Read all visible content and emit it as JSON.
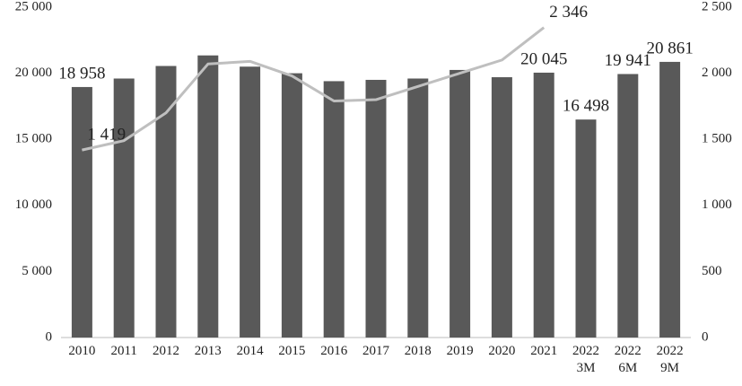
{
  "chart_data": {
    "type": "bar",
    "categories": [
      "2010",
      "2011",
      "2012",
      "2013",
      "2014",
      "2015",
      "2016",
      "2017",
      "2018",
      "2019",
      "2020",
      "2021",
      "2022\n3M",
      "2022\n6M",
      "2022\n9M"
    ],
    "series": [
      {
        "type": "bar",
        "color": "#595959",
        "values": [
          18958,
          19600,
          20550,
          21350,
          20500,
          20000,
          19400,
          19500,
          19600,
          20250,
          19700,
          20045,
          16498,
          19941,
          20861
        ],
        "value_labels": [
          "18 958",
          null,
          null,
          null,
          null,
          null,
          null,
          null,
          null,
          null,
          null,
          "20 045",
          "16 498",
          "19 941",
          "20 861"
        ]
      },
      {
        "type": "line",
        "axis": "y2",
        "color": "#bfbfbf",
        "values": [
          1419,
          1490,
          1700,
          2070,
          2090,
          1980,
          1790,
          1800,
          1900,
          2000,
          2100,
          2346,
          null,
          null,
          null
        ],
        "value_labels": [
          "1 419",
          null,
          null,
          null,
          null,
          null,
          null,
          null,
          null,
          null,
          null,
          "2 346",
          null,
          null,
          null
        ]
      }
    ],
    "ylim": [
      0,
      25000
    ],
    "yticks": [
      0,
      {
        "value": 5000,
        "label": "5 000"
      },
      {
        "value": 10000,
        "label": "10 000"
      },
      {
        "value": 15000,
        "label": "15 000"
      },
      {
        "value": 20000,
        "label": "20 000"
      },
      {
        "value": 25000,
        "label": "25 000"
      }
    ],
    "y2lim": [
      0,
      2500
    ],
    "y2ticks": [
      0,
      500,
      {
        "value": 1000,
        "label": "1 000"
      },
      {
        "value": 1500,
        "label": "1 500"
      },
      {
        "value": 2000,
        "label": "2 000"
      },
      {
        "value": 2500,
        "label": "2 500"
      }
    ],
    "grid": false
  }
}
